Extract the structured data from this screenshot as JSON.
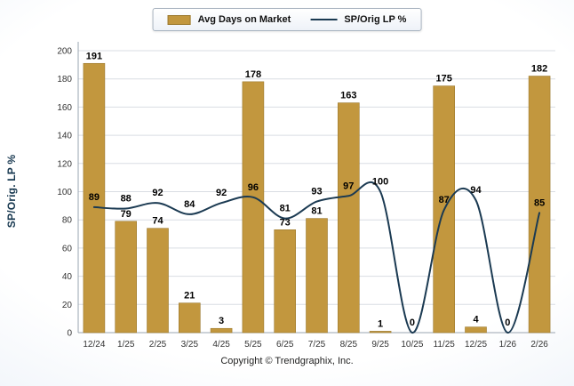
{
  "chart_data": {
    "type": "bar",
    "combo": "bar+line",
    "categories": [
      "12/24",
      "1/25",
      "2/25",
      "3/25",
      "4/25",
      "5/25",
      "6/25",
      "7/25",
      "8/25",
      "9/25",
      "10/25",
      "11/25",
      "12/25",
      "1/26",
      "2/26"
    ],
    "series": [
      {
        "name": "Avg Days on Market",
        "type": "bar",
        "color": "#C2973E",
        "values": [
          191,
          79,
          74,
          21,
          3,
          178,
          73,
          81,
          163,
          1,
          0,
          175,
          4,
          0,
          182
        ]
      },
      {
        "name": "SP/Orig LP %",
        "type": "line",
        "color": "#1b3a52",
        "values": [
          89,
          88,
          92,
          84,
          92,
          96,
          81,
          93,
          97,
          100,
          0,
          87,
          94,
          0,
          85
        ]
      }
    ],
    "legend": [
      "Avg Days on Market",
      "SP/Orig LP %"
    ],
    "legend_position": "top-center",
    "title": "",
    "xlabel": "",
    "ylabel": "SP/Orig. LP %",
    "ylim": [
      0,
      200
    ],
    "ytick_step": 20,
    "grid": true,
    "footer": "Copyright © Trendgraphix, Inc."
  }
}
